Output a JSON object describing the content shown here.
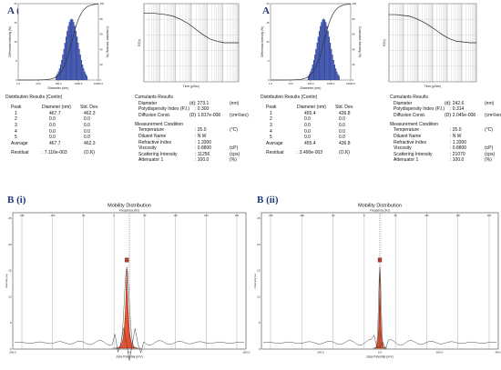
{
  "panels": {
    "a1": "A (i)",
    "a2": "A (ii)",
    "b1": "B (i)",
    "b2": "B (ii)"
  },
  "colors": {
    "bar_fill": "#2e49b8",
    "peak_fill": "#ee5a38",
    "panel_label": "#1f3a7a",
    "marker": "#c0392b"
  },
  "chart_data": [
    {
      "id": "a1_size",
      "type": "bar",
      "title": "",
      "xlabel": "Diameter (nm)",
      "ylabel": "Differential Intensity (%)",
      "y2label": "Cumulative Intensity (%)",
      "xscale": "log",
      "xticks": [
        "1.0",
        "10.0",
        "100.0",
        "1000.0",
        "10000.0"
      ],
      "xlim": [
        1,
        10000
      ],
      "ylim": [
        0,
        100
      ],
      "yticks": [
        "0",
        "5",
        "10",
        "15",
        "20"
      ],
      "y2ticks": [
        "0",
        "20",
        "40",
        "60",
        "80",
        "100"
      ],
      "distribution": {
        "center": 467.7,
        "log_sigma": 0.33,
        "peak_percent": 80
      },
      "cumulative": {
        "midpoint": 467.7
      }
    },
    {
      "id": "a1_corr",
      "type": "line",
      "title": "",
      "xlabel": "Time (µSec)",
      "ylabel": "G2(τ)",
      "xscale": "log",
      "grid": true,
      "values": [
        0.88,
        0.88,
        0.87,
        0.86,
        0.84,
        0.8,
        0.75,
        0.68,
        0.61,
        0.55,
        0.52,
        0.5,
        0.5,
        0.5
      ]
    },
    {
      "id": "a2_size",
      "type": "bar",
      "title": "",
      "xlabel": "Diameter (nm)",
      "ylabel": "Differential Intensity (%)",
      "y2label": "Cumulative Intensity (%)",
      "xscale": "log",
      "xticks": [
        "1.0",
        "10.0",
        "100.0",
        "1000.0",
        "10000.0"
      ],
      "xlim": [
        1,
        10000
      ],
      "ylim": [
        0,
        100
      ],
      "yticks": [
        "0",
        "5",
        "10",
        "15",
        "20"
      ],
      "y2ticks": [
        "0",
        "20",
        "40",
        "60",
        "80",
        "100"
      ],
      "distribution": {
        "center": 455.4,
        "log_sigma": 0.33,
        "peak_percent": 80
      },
      "cumulative": {
        "midpoint": 455.4
      }
    },
    {
      "id": "a2_corr",
      "type": "line",
      "title": "",
      "xlabel": "Time (µSec)",
      "ylabel": "G2(τ)",
      "xscale": "log",
      "grid": true,
      "values": [
        0.86,
        0.86,
        0.85,
        0.84,
        0.81,
        0.77,
        0.72,
        0.66,
        0.6,
        0.55,
        0.52,
        0.51,
        0.5,
        0.5
      ]
    },
    {
      "id": "b1_mobility",
      "type": "area",
      "title": "Mobility Distribution",
      "xlabel": "Zeta Potential (mV)",
      "ylabel": "Intensity (a)",
      "x2label": "Frequency (Hz)",
      "xlim": [
        200,
        -200
      ],
      "ylim": [
        0,
        25
      ],
      "xticks": [
        "200.0",
        "0.0",
        "-200.0"
      ],
      "x2ticks": [
        "-150",
        "-100",
        "-50",
        "0",
        "50",
        "100",
        "150",
        "200"
      ],
      "yticks": [
        "0",
        "5",
        "10",
        "15",
        "20",
        "25"
      ],
      "peak": {
        "center": 4.4,
        "height": 15.5,
        "width": 9
      }
    },
    {
      "id": "b2_mobility",
      "type": "area",
      "title": "Mobility Distribution",
      "xlabel": "Zeta Potential (mV)",
      "ylabel": "Intensity (a)",
      "x2label": "Frequency (Hz)",
      "xlim": [
        400,
        -400
      ],
      "ylim": [
        0,
        25
      ],
      "xticks": [
        "200.0",
        "0.0",
        "-200.0",
        "-400.0"
      ],
      "x2ticks": [
        "-150",
        "-100",
        "-50",
        "0",
        "50",
        "100",
        "150",
        "200"
      ],
      "yticks": [
        "0",
        "5",
        "10",
        "15",
        "20",
        "25"
      ],
      "peak": {
        "center": 0.0,
        "height": 15.5,
        "width": 9
      }
    }
  ],
  "results": [
    {
      "dist_title": "Distribution Results (Contin)",
      "headers": {
        "peak": "Peak",
        "diameter": "Diameter (nm)",
        "std": "Std. Dev."
      },
      "rows": [
        {
          "peak": "1",
          "d": "467.7",
          "s": "462.3"
        },
        {
          "peak": "2",
          "d": "0.0",
          "s": "0.0"
        },
        {
          "peak": "3",
          "d": "0.0",
          "s": "0.0"
        },
        {
          "peak": "4",
          "d": "0.0",
          "s": "0.0"
        },
        {
          "peak": "5",
          "d": "0.0",
          "s": "0.0"
        }
      ],
      "average": {
        "label": "Average",
        "d": "467.7",
        "s": "462.3"
      },
      "residual": {
        "label": "Residual",
        "value": ": 7.116e-003",
        "status": "(O.K)"
      },
      "cum_title": "Cumulants Results",
      "cumulants": [
        {
          "label": "Diameter",
          "sym": "(d)",
          "value": ": 273.1",
          "unit": "(nm)"
        },
        {
          "label": "Polydispersity Index (P.I.)",
          "sym": "",
          "value": ": 0.300",
          "unit": ""
        },
        {
          "label": "Diffusion Const.",
          "sym": "(D)",
          "value": ": 1.817e-008",
          "unit": "(cm²/sec)"
        }
      ],
      "cond_title": "Measurement Condition",
      "conditions": [
        {
          "label": "Temperature",
          "value": ": 25.0",
          "unit": "(°C)"
        },
        {
          "label": "Diluent Name",
          "value": ": N W",
          "unit": ""
        },
        {
          "label": "Refractive Index",
          "value": ": 1.3300",
          "unit": ""
        },
        {
          "label": "Viscosity",
          "value": ": 0.8800",
          "unit": "(cP)"
        },
        {
          "label": "Scattering Intensity",
          "value": ": 11256",
          "unit": "(cps)"
        },
        {
          "label": "Attenuator 1",
          "value": ": 100.0",
          "unit": "(%)"
        }
      ]
    },
    {
      "dist_title": "Distribution Results (Contin)",
      "headers": {
        "peak": "Peak",
        "diameter": "Diameter (nm)",
        "std": "Std. Dev."
      },
      "rows": [
        {
          "peak": "1",
          "d": "455.4",
          "s": "436.8"
        },
        {
          "peak": "2",
          "d": "0.0",
          "s": "0.0"
        },
        {
          "peak": "3",
          "d": "0.0",
          "s": "0.0"
        },
        {
          "peak": "4",
          "d": "0.0",
          "s": "0.0"
        },
        {
          "peak": "5",
          "d": "0.0",
          "s": "0.0"
        }
      ],
      "average": {
        "label": "Average",
        "d": "455.4",
        "s": "436.8"
      },
      "residual": {
        "label": "Residual",
        "value": ": 3.490e-003",
        "status": "(O.K)"
      },
      "cum_title": "Cumulants Results",
      "cumulants": [
        {
          "label": "Diameter",
          "sym": "(d)",
          "value": ": 242.6",
          "unit": "(nm)"
        },
        {
          "label": "Polydispersity Index (P.I.)",
          "sym": "",
          "value": ": 0.314",
          "unit": ""
        },
        {
          "label": "Diffusion Const.",
          "sym": "(D)",
          "value": ": 2.045e-008",
          "unit": "(cm²/sec)"
        }
      ],
      "cond_title": "Measurement Condition",
      "conditions": [
        {
          "label": "Temperature",
          "value": ": 25.0",
          "unit": "(°C)"
        },
        {
          "label": "Diluent Name",
          "value": ": N W",
          "unit": ""
        },
        {
          "label": "Refractive Index",
          "value": ": 1.3300",
          "unit": ""
        },
        {
          "label": "Viscosity",
          "value": ": 0.8800",
          "unit": "(cP)"
        },
        {
          "label": "Scattering Intensity",
          "value": ": 21070",
          "unit": "(cps)"
        },
        {
          "label": "Attenuator 1",
          "value": ": 100.0",
          "unit": "(%)"
        }
      ]
    }
  ]
}
